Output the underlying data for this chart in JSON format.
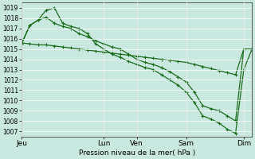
{
  "title": "Pression niveau de la mer( hPa )",
  "bg_color": "#c8e8e0",
  "grid_color": "#ffffff",
  "line_color": "#1a6b1a",
  "ylim": [
    1006.5,
    1019.5
  ],
  "yticks": [
    1007,
    1008,
    1009,
    1010,
    1011,
    1012,
    1013,
    1014,
    1015,
    1016,
    1017,
    1018,
    1019
  ],
  "xtick_labels": [
    "Jeu",
    "Lun",
    "Ven",
    "Sam",
    "Dim"
  ],
  "xtick_positions": [
    0,
    10,
    14,
    20,
    27
  ],
  "vline_positions": [
    0,
    10,
    14,
    20,
    27
  ],
  "xlim": [
    0,
    28
  ],
  "line1_x": [
    0,
    1,
    2,
    3,
    4,
    5,
    6,
    7,
    8,
    9,
    10,
    11,
    12,
    13,
    14,
    15,
    16,
    17,
    18,
    19,
    20,
    21,
    22,
    23,
    24,
    25,
    26,
    27,
    28
  ],
  "line1_y": [
    1015.6,
    1015.5,
    1015.4,
    1015.4,
    1015.3,
    1015.2,
    1015.1,
    1015.0,
    1014.9,
    1014.8,
    1014.7,
    1014.6,
    1014.5,
    1014.4,
    1014.3,
    1014.2,
    1014.1,
    1014.0,
    1013.9,
    1013.8,
    1013.7,
    1013.5,
    1013.3,
    1013.1,
    1012.9,
    1012.7,
    1012.5,
    1015.0,
    1015.0
  ],
  "line2_x": [
    0,
    1,
    2,
    3,
    4,
    5,
    6,
    7,
    8,
    9,
    10,
    11,
    12,
    13,
    14,
    15,
    16,
    17,
    18,
    19,
    20,
    21,
    22,
    23,
    24,
    25,
    26,
    27,
    28
  ],
  "line2_y": [
    1015.5,
    1017.3,
    1017.8,
    1018.1,
    1017.5,
    1017.2,
    1017.0,
    1016.5,
    1016.2,
    1015.8,
    1015.5,
    1015.2,
    1015.0,
    1014.5,
    1014.0,
    1013.7,
    1013.5,
    1013.2,
    1012.8,
    1012.3,
    1011.8,
    1010.8,
    1009.5,
    1009.2,
    1009.0,
    1008.5,
    1008.0,
    1015.0,
    1015.0
  ],
  "line3_x": [
    0,
    1,
    2,
    3,
    4,
    5,
    6,
    7,
    8,
    9,
    10,
    11,
    12,
    13,
    14,
    15,
    16,
    17,
    18,
    19,
    20,
    21,
    22,
    23,
    24,
    25,
    26,
    27,
    28
  ],
  "line3_y": [
    1015.5,
    1017.3,
    1017.8,
    1018.8,
    1019.0,
    1017.5,
    1017.2,
    1017.0,
    1016.5,
    1015.5,
    1015.0,
    1014.5,
    1014.2,
    1013.8,
    1013.5,
    1013.2,
    1013.0,
    1012.5,
    1012.0,
    1011.5,
    1010.8,
    1009.8,
    1008.5,
    1008.2,
    1007.8,
    1007.2,
    1006.8,
    1013.0,
    1015.0
  ]
}
